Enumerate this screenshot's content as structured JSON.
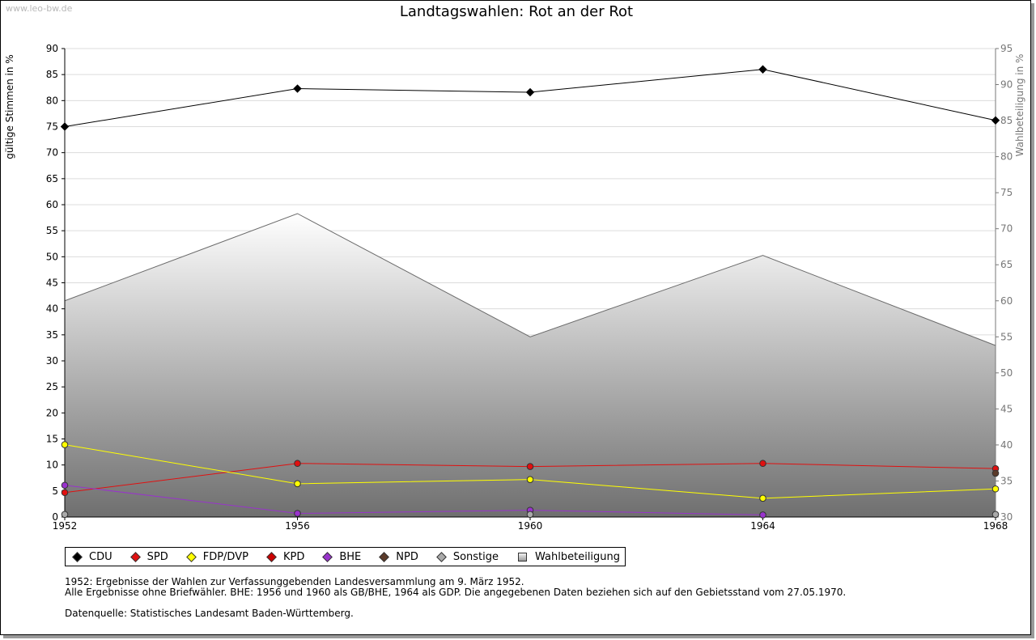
{
  "watermark": "www.leo-bw.de",
  "chart_data": {
    "type": "line",
    "title": "Landtagswahlen: Rot an der Rot",
    "xlabel": "",
    "ylabel": "gültige Stimmen in %",
    "ylabel_right": "Wahlbeteiligung in %",
    "categories": [
      "1952",
      "1956",
      "1960",
      "1964",
      "1968"
    ],
    "ylim": [
      0,
      90
    ],
    "ylim_right": [
      30,
      95
    ],
    "yticks": [
      0,
      5,
      10,
      15,
      20,
      25,
      30,
      35,
      40,
      45,
      50,
      55,
      60,
      65,
      70,
      75,
      80,
      85,
      90
    ],
    "yticks_right": [
      30,
      35,
      40,
      45,
      50,
      55,
      60,
      65,
      70,
      75,
      80,
      85,
      90,
      95
    ],
    "grid": true,
    "series": [
      {
        "name": "CDU",
        "color": "#000000",
        "values": [
          75.0,
          82.3,
          81.6,
          86.0,
          76.2
        ]
      },
      {
        "name": "SPD",
        "color": "#e01010",
        "values": [
          4.7,
          10.3,
          9.7,
          10.3,
          9.3
        ]
      },
      {
        "name": "FDP/DVP",
        "color": "#ffff00",
        "values": [
          13.9,
          6.4,
          7.2,
          3.6,
          5.4
        ]
      },
      {
        "name": "KPD",
        "color": "#cc0000",
        "values": [
          null,
          null,
          null,
          null,
          null
        ]
      },
      {
        "name": "BHE",
        "color": "#9933cc",
        "values": [
          6.1,
          0.7,
          1.3,
          0.4,
          null
        ]
      },
      {
        "name": "NPD",
        "color": "#5b3a29",
        "values": [
          null,
          null,
          null,
          null,
          8.4
        ]
      },
      {
        "name": "Sonstige",
        "color": "#aaaaaa",
        "values": [
          0.5,
          null,
          0.5,
          null,
          0.5
        ]
      },
      {
        "name": "Wahlbeteiligung",
        "color": "#999999",
        "axis": "right",
        "area": true,
        "values": [
          60.0,
          72.1,
          55.0,
          66.3,
          53.8
        ]
      }
    ]
  },
  "legend": [
    {
      "label": "CDU",
      "color": "#000000"
    },
    {
      "label": "SPD",
      "color": "#e01010"
    },
    {
      "label": "FDP/DVP",
      "color": "#ffff00"
    },
    {
      "label": "KPD",
      "color": "#cc0000"
    },
    {
      "label": "BHE",
      "color": "#9933cc"
    },
    {
      "label": "NPD",
      "color": "#5b3a29"
    },
    {
      "label": "Sonstige",
      "color": "#aaaaaa"
    },
    {
      "label": "Wahlbeteiligung",
      "square": true
    }
  ],
  "notes": {
    "line1": "1952: Ergebnisse der Wahlen zur Verfassunggebenden Landesversammlung am 9. März 1952.",
    "line2": "Alle Ergebnisse ohne Briefwähler. BHE: 1956 und 1960 als GB/BHE, 1964 als GDP. Die angegebenen Daten beziehen sich auf den Gebietsstand vom 27.05.1970.",
    "source": "Datenquelle: Statistisches Landesamt Baden-Württemberg."
  }
}
